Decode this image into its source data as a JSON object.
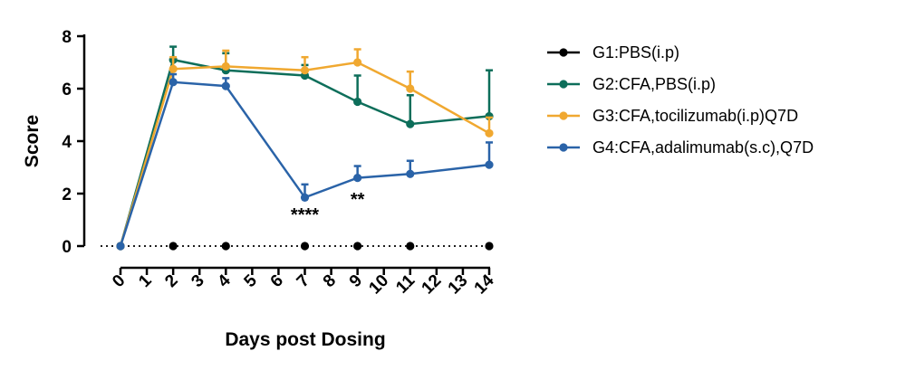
{
  "chart_data": {
    "type": "line",
    "xlabel": "Days post Dosing",
    "ylabel": "Score",
    "xlim": [
      0,
      14
    ],
    "ylim": [
      0,
      8
    ],
    "x_ticks": [
      0,
      1,
      2,
      3,
      4,
      5,
      6,
      7,
      8,
      9,
      10,
      11,
      12,
      13,
      14
    ],
    "x_tick_labels": [
      "0",
      "1",
      "2",
      "3",
      "4",
      "5",
      "6",
      "7",
      "8",
      "9",
      "10",
      "11",
      "12",
      "13",
      "14"
    ],
    "y_ticks": [
      0,
      2,
      4,
      6,
      8
    ],
    "y_tick_labels": [
      "0",
      "2",
      "4",
      "6",
      "8"
    ],
    "legend_position": "right",
    "grid": false,
    "series": [
      {
        "name": "G1:PBS(i.p)",
        "color": "#000000",
        "dotted_line": true,
        "x": [
          0,
          2,
          4,
          7,
          9,
          11,
          14
        ],
        "y": [
          0,
          0,
          0,
          0,
          0,
          0,
          0
        ],
        "err": [
          0,
          0,
          0,
          0,
          0,
          0,
          0
        ]
      },
      {
        "name": "G2:CFA,PBS(i.p)",
        "color": "#0d6e5a",
        "dotted_line": false,
        "x": [
          0,
          2,
          4,
          7,
          9,
          11,
          14
        ],
        "y": [
          0,
          7.1,
          6.7,
          6.5,
          5.5,
          4.65,
          4.95
        ],
        "err": [
          0,
          0.5,
          0.65,
          0.4,
          1.0,
          1.1,
          1.75
        ]
      },
      {
        "name": "G3:CFA,tocilizumab(i.p)Q7D",
        "color": "#f0a830",
        "dotted_line": false,
        "x": [
          0,
          2,
          4,
          7,
          9,
          11,
          14
        ],
        "y": [
          0,
          6.75,
          6.85,
          6.7,
          7.0,
          6.0,
          4.3
        ],
        "err": [
          0,
          0.45,
          0.6,
          0.5,
          0.5,
          0.65,
          0.6
        ]
      },
      {
        "name": "G4:CFA,adalimumab(s.c),Q7D",
        "color": "#2a63a8",
        "dotted_line": false,
        "x": [
          0,
          2,
          4,
          7,
          9,
          11,
          14
        ],
        "y": [
          0,
          6.25,
          6.1,
          1.85,
          2.6,
          2.75,
          3.1
        ],
        "err": [
          0,
          0.3,
          0.3,
          0.5,
          0.45,
          0.5,
          0.85
        ]
      }
    ],
    "annotations": [
      {
        "text": "****",
        "x": 7,
        "y": 1.2
      },
      {
        "text": "**",
        "x": 9,
        "y": 1.8
      }
    ]
  }
}
